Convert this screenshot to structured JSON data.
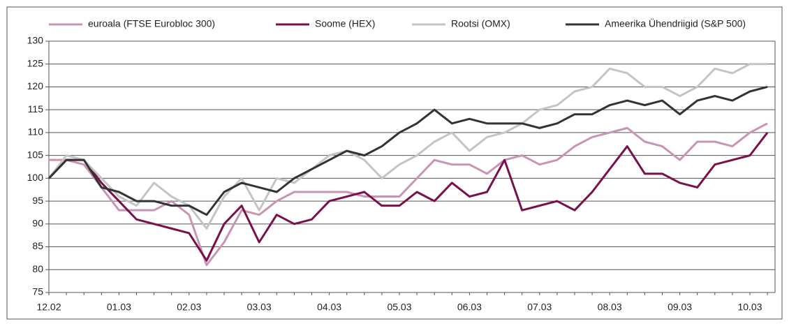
{
  "chart_data": {
    "type": "line",
    "categories": [
      "12.02",
      null,
      null,
      null,
      "01.03",
      null,
      null,
      null,
      "02.03",
      null,
      null,
      null,
      "03.03",
      null,
      null,
      null,
      "04.03",
      null,
      null,
      null,
      "05.03",
      null,
      null,
      null,
      "06.03",
      null,
      null,
      null,
      "07.03",
      null,
      null,
      null,
      "08.03",
      null,
      null,
      null,
      "09.03",
      null,
      null,
      null,
      "10.03",
      null
    ],
    "series": [
      {
        "name": "euroala (FTSE Eurobloc 300)",
        "color": "#c994b4",
        "values": [
          104,
          104,
          103,
          98,
          93,
          93,
          93,
          95,
          92,
          81,
          86,
          93,
          92,
          95,
          97,
          97,
          97,
          97,
          96,
          96,
          96,
          100,
          104,
          103,
          103,
          101,
          104,
          105,
          103,
          104,
          107,
          109,
          110,
          111,
          108,
          107,
          104,
          108,
          108,
          107,
          110,
          112
        ]
      },
      {
        "name": "Soome (HEX)",
        "color": "#7a0f4a",
        "values": [
          100,
          104,
          104,
          99,
          95,
          91,
          90,
          89,
          88,
          82,
          90,
          94,
          86,
          92,
          90,
          91,
          95,
          96,
          97,
          94,
          94,
          97,
          95,
          99,
          96,
          97,
          104,
          93,
          94,
          95,
          93,
          97,
          102,
          107,
          101,
          101,
          99,
          98,
          103,
          104,
          105,
          110
        ]
      },
      {
        "name": "Rootsi (OMX)",
        "color": "#c4c4c4",
        "values": [
          100,
          105,
          104,
          100,
          96,
          94,
          99,
          96,
          94,
          89,
          96,
          100,
          93,
          100,
          99,
          102,
          105,
          106,
          104,
          100,
          103,
          105,
          108,
          110,
          106,
          109,
          110,
          112,
          115,
          116,
          119,
          120,
          124,
          123,
          120,
          120,
          118,
          120,
          124,
          123,
          125,
          125
        ]
      },
      {
        "name": "Ameerika Ühendriigid (S&P 500)",
        "color": "#333333",
        "values": [
          100,
          104,
          104,
          98,
          97,
          95,
          95,
          94,
          94,
          92,
          97,
          99,
          98,
          97,
          100,
          102,
          104,
          106,
          105,
          107,
          110,
          112,
          115,
          112,
          113,
          112,
          112,
          112,
          111,
          112,
          114,
          114,
          116,
          117,
          116,
          117,
          114,
          117,
          118,
          117,
          119,
          120
        ]
      }
    ],
    "ylim": [
      75,
      130
    ],
    "yticks": [
      75,
      80,
      85,
      90,
      95,
      100,
      105,
      110,
      115,
      120,
      125,
      130
    ],
    "grid": true
  }
}
